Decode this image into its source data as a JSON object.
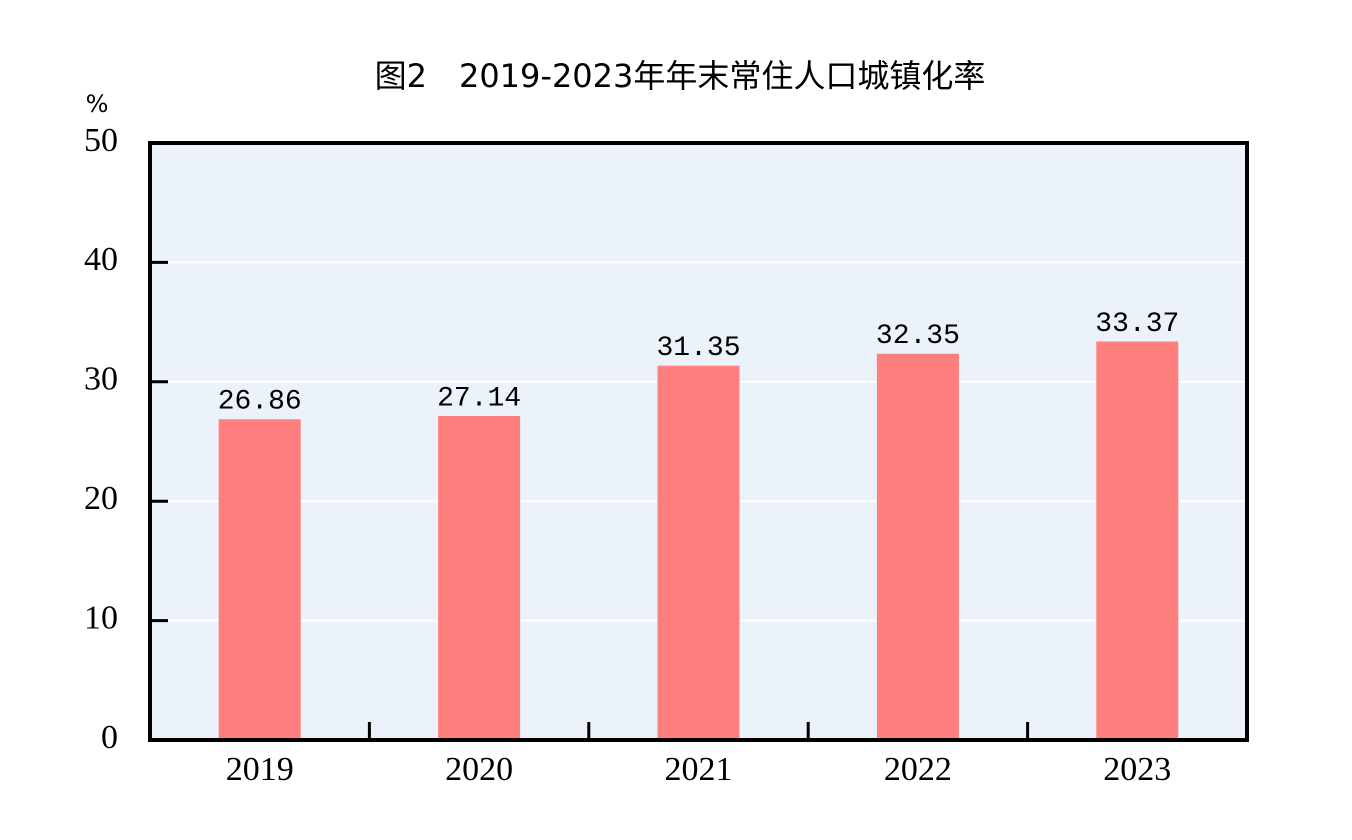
{
  "chart_data": {
    "type": "bar",
    "title": "图2　2019-2023年年末常住人口城镇化率",
    "y_label": "%",
    "categories": [
      "2019",
      "2020",
      "2021",
      "2022",
      "2023"
    ],
    "values": [
      26.86,
      27.14,
      31.35,
      32.35,
      33.37
    ],
    "color": "#ff7f7f",
    "plot_background": "#ecf2f9",
    "ylim": [
      0,
      50
    ],
    "yticks": [
      0,
      10,
      20,
      30,
      40,
      50
    ],
    "grid": true
  }
}
